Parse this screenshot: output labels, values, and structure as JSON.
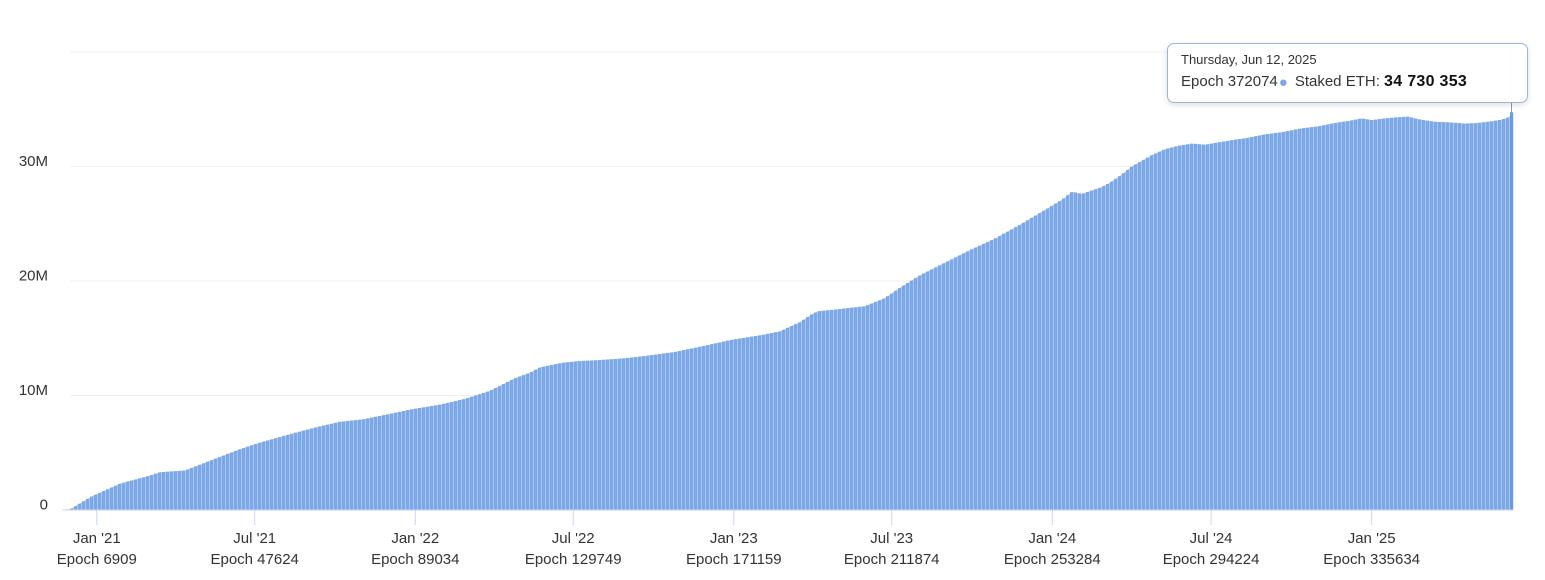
{
  "tooltip": {
    "date": "Thursday, Jun 12, 2025",
    "epoch_label": "Epoch 372074",
    "series_label": "Staked ETH:",
    "value": "34 730 353"
  },
  "chart_data": {
    "type": "area",
    "title": "",
    "xlabel": "",
    "ylabel": "",
    "legend": "none",
    "grid": "horizontal",
    "x_unit": "epoch",
    "x_max_epoch": 372074,
    "ylim_millions": [
      0,
      40
    ],
    "y_ticks": [
      {
        "label": "0",
        "value": 0
      },
      {
        "label": "10M",
        "value": 10
      },
      {
        "label": "20M",
        "value": 20
      },
      {
        "label": "30M",
        "value": 30
      },
      {
        "label": "",
        "value": 40
      }
    ],
    "x_ticks": [
      {
        "date": "Jan '21",
        "epoch_label": "Epoch 6909",
        "epoch": 6909
      },
      {
        "date": "Jul '21",
        "epoch_label": "Epoch 47624",
        "epoch": 47624
      },
      {
        "date": "Jan '22",
        "epoch_label": "Epoch 89034",
        "epoch": 89034
      },
      {
        "date": "Jul '22",
        "epoch_label": "Epoch 129749",
        "epoch": 129749
      },
      {
        "date": "Jan '23",
        "epoch_label": "Epoch 171159",
        "epoch": 171159
      },
      {
        "date": "Jul '23",
        "epoch_label": "Epoch 211874",
        "epoch": 211874
      },
      {
        "date": "Jan '24",
        "epoch_label": "Epoch 253284",
        "epoch": 253284
      },
      {
        "date": "Jul '24",
        "epoch_label": "Epoch 294224",
        "epoch": 294224
      },
      {
        "date": "Jan '25",
        "epoch_label": "Epoch 335634",
        "epoch": 335634
      }
    ],
    "series": [
      {
        "name": "Staked ETH",
        "hovered_point": {
          "epoch": 372074,
          "value_eth": 34730353,
          "value_millions": 34.730353
        },
        "points_epoch_millions": [
          [
            0,
            0.05
          ],
          [
            5700,
            1.2
          ],
          [
            12900,
            2.3
          ],
          [
            20600,
            3.0
          ],
          [
            23200,
            3.3
          ],
          [
            29700,
            3.45
          ],
          [
            36100,
            4.3
          ],
          [
            43800,
            5.3
          ],
          [
            48200,
            5.8
          ],
          [
            55400,
            6.5
          ],
          [
            63200,
            7.2
          ],
          [
            69600,
            7.7
          ],
          [
            75300,
            7.9
          ],
          [
            81200,
            8.3
          ],
          [
            88200,
            8.8
          ],
          [
            95400,
            9.2
          ],
          [
            101800,
            9.7
          ],
          [
            108300,
            10.4
          ],
          [
            114700,
            11.5
          ],
          [
            118700,
            12.0
          ],
          [
            121200,
            12.45
          ],
          [
            126900,
            12.85
          ],
          [
            131000,
            13.0
          ],
          [
            137000,
            13.1
          ],
          [
            143000,
            13.25
          ],
          [
            148300,
            13.45
          ],
          [
            156000,
            13.8
          ],
          [
            163700,
            14.35
          ],
          [
            170400,
            14.85
          ],
          [
            177900,
            15.25
          ],
          [
            183100,
            15.6
          ],
          [
            188200,
            16.4
          ],
          [
            191300,
            17.1
          ],
          [
            192900,
            17.35
          ],
          [
            198500,
            17.55
          ],
          [
            205000,
            17.8
          ],
          [
            210100,
            18.5
          ],
          [
            214000,
            19.4
          ],
          [
            219200,
            20.5
          ],
          [
            225600,
            21.6
          ],
          [
            232100,
            22.7
          ],
          [
            238500,
            23.7
          ],
          [
            244900,
            24.9
          ],
          [
            251400,
            26.2
          ],
          [
            255800,
            27.1
          ],
          [
            258400,
            27.8
          ],
          [
            260900,
            27.6
          ],
          [
            263500,
            27.9
          ],
          [
            266100,
            28.2
          ],
          [
            268700,
            28.7
          ],
          [
            271200,
            29.3
          ],
          [
            273800,
            30.0
          ],
          [
            276400,
            30.5
          ],
          [
            279000,
            31.0
          ],
          [
            282300,
            31.5
          ],
          [
            285700,
            31.8
          ],
          [
            289300,
            32.0
          ],
          [
            292700,
            31.9
          ],
          [
            296000,
            32.1
          ],
          [
            299600,
            32.3
          ],
          [
            303700,
            32.5
          ],
          [
            308100,
            32.8
          ],
          [
            312500,
            33.0
          ],
          [
            317100,
            33.3
          ],
          [
            321800,
            33.5
          ],
          [
            326200,
            33.8
          ],
          [
            330000,
            34.0
          ],
          [
            333100,
            34.2
          ],
          [
            335700,
            34.05
          ],
          [
            339100,
            34.2
          ],
          [
            342400,
            34.3
          ],
          [
            345000,
            34.35
          ],
          [
            348100,
            34.1
          ],
          [
            352000,
            33.9
          ],
          [
            355800,
            33.85
          ],
          [
            359700,
            33.75
          ],
          [
            363000,
            33.8
          ],
          [
            366700,
            33.95
          ],
          [
            369200,
            34.1
          ],
          [
            371000,
            34.3
          ],
          [
            372074,
            34.730353
          ]
        ]
      }
    ],
    "colors": {
      "bar": "#7da8e8",
      "bar_gap_fill": "#abc8f1",
      "bar_hover": "#6a9be2",
      "marker_dot": "#7ca7e8",
      "gridline": "#efefef",
      "axis_line": "#ccd6eb",
      "crosshair": "#999999",
      "text": "#333333",
      "tooltip_border": "#9cb6d6"
    }
  }
}
